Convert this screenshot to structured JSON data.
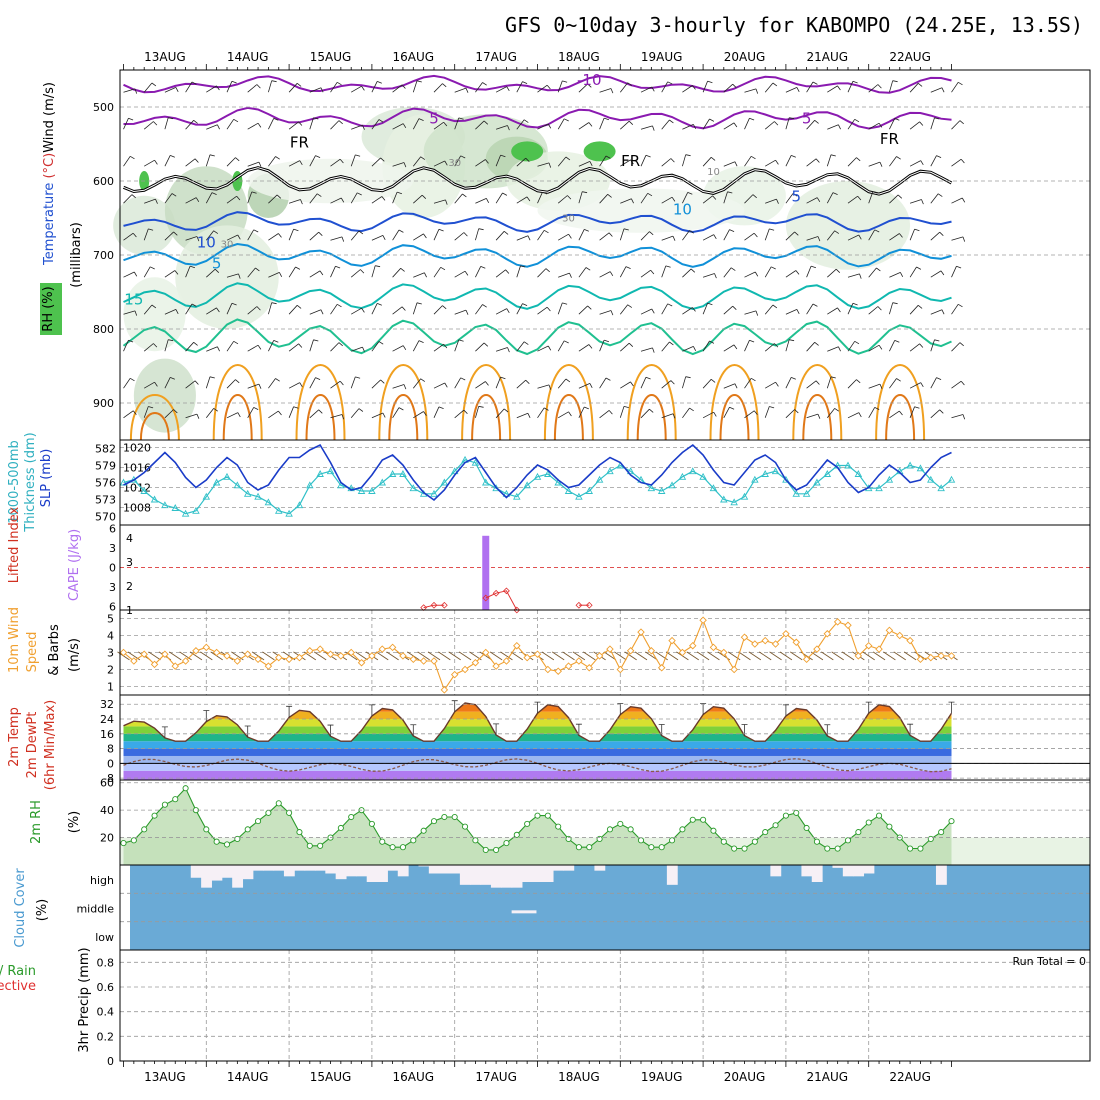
{
  "title": "GFS 0~10day 3-hourly for KABOMPO (24.25E, 13.5S)",
  "chart_data": {
    "type": "meteogram",
    "time_axis": {
      "days": [
        "13AUG",
        "14AUG",
        "15AUG",
        "16AUG",
        "17AUG",
        "18AUG",
        "19AUG",
        "20AUG",
        "21AUG",
        "22AUG"
      ],
      "steps": 81,
      "step_hours": 3
    },
    "panels": {
      "upper_air": {
        "type": "contour",
        "ylabel_parts": [
          "RH (%)",
          "Temperature (°C)",
          "Wind (m/s)"
        ],
        "axis_label": "(millibars)",
        "pressure_levels": [
          500,
          600,
          700,
          800,
          900
        ],
        "ylim": [
          450,
          950
        ],
        "contour_labels": [
          "-10",
          "5",
          "5",
          "FR",
          "FR",
          "FR",
          "10",
          "10",
          "5",
          "5",
          "15",
          "30",
          "30",
          "30",
          "10"
        ]
      },
      "thickness_slp": {
        "type": "line",
        "ylabel_left": "1000-500mb Thickness (dm)",
        "ylabel_right": "SLP (mb)",
        "left_ticks": [
          570,
          573,
          576,
          579,
          582
        ],
        "right_ticks": [
          1008,
          1012,
          1016,
          1020
        ],
        "left_lim": [
          568.5,
          583.5
        ],
        "right_lim": [
          1004.5,
          1021.5
        ],
        "slp": [
          1012.5,
          1013.5,
          1015,
          1017,
          1019,
          1017,
          1014,
          1012,
          1013.5,
          1016,
          1018,
          1016.5,
          1013,
          1011.5,
          1012.5,
          1015.5,
          1018,
          1018,
          1019.5,
          1020.5,
          1017,
          1013,
          1011.5,
          1012,
          1014.5,
          1017.5,
          1018.5,
          1016.5,
          1013.5,
          1011,
          1009.5,
          1011.5,
          1014.5,
          1017,
          1018,
          1015,
          1012,
          1010,
          1012,
          1014.5,
          1016.5,
          1015.5,
          1013.5,
          1012,
          1012.5,
          1014.5,
          1016.5,
          1018,
          1017,
          1014.5,
          1013,
          1012.5,
          1014.5,
          1017,
          1019,
          1020.5,
          1018.5,
          1015.5,
          1013,
          1012.5,
          1015,
          1017.5,
          1018.5,
          1017,
          1013.5,
          1011.5,
          1012.5,
          1015,
          1017.5,
          1016,
          1013,
          1011,
          1012,
          1014.5,
          1016.5,
          1015,
          1013,
          1013.5,
          1016,
          1018,
          1019
        ],
        "thickness": [
          576,
          576.5,
          574.5,
          573,
          572,
          571.5,
          570.5,
          571,
          573.5,
          576,
          577,
          575.5,
          574,
          573.5,
          572.5,
          571,
          570.5,
          572,
          575.5,
          577.5,
          578,
          575.5,
          575,
          574.5,
          574.5,
          576,
          577.5,
          577.5,
          575,
          574,
          574,
          576,
          578,
          580,
          579.5,
          576,
          575,
          574,
          573.5,
          575.5,
          577,
          577.5,
          576,
          574.5,
          573.5,
          574.5,
          576.5,
          578,
          579,
          578,
          576.5,
          575,
          574.5,
          575.5,
          577,
          578,
          577,
          575,
          573,
          572.5,
          573.5,
          576.5,
          577.5,
          578,
          576.5,
          574,
          574,
          576,
          577.5,
          579,
          579,
          577.5,
          575,
          575,
          576.5,
          578,
          579,
          578.5,
          576.5,
          575,
          576.5
        ]
      },
      "lifted_cape": {
        "type": "bar+line",
        "ylabel_left": "Lifted Index",
        "ylabel_right": "CAPE (J/kg)",
        "left_ticks": [
          -6,
          -3,
          0,
          3,
          6
        ],
        "left_tick_labels": [
          "6",
          "3",
          "0",
          "3",
          "6"
        ],
        "right_ticks": [
          1,
          2,
          3,
          4
        ],
        "cape_bar": {
          "step": 35,
          "value": 4.1
        },
        "lifted_segments": [
          [
            [
              29,
              1.1
            ],
            [
              30,
              1.2
            ],
            [
              31,
              1.2
            ]
          ],
          [
            [
              35,
              1.5
            ],
            [
              36,
              1.7
            ],
            [
              37,
              1.8
            ],
            [
              38,
              1.0
            ]
          ],
          [
            [
              44,
              1.2
            ],
            [
              45,
              1.2
            ]
          ]
        ]
      },
      "wind10m": {
        "type": "line",
        "ylabel": "10m Wind Speed & Barbs (m/s)",
        "ticks": [
          1,
          2,
          3,
          4,
          5
        ],
        "ylim": [
          0.5,
          5.5
        ],
        "speed": [
          3.0,
          2.5,
          2.9,
          2.3,
          2.9,
          2.2,
          2.5,
          3.1,
          3.3,
          3.0,
          2.8,
          2.5,
          2.9,
          2.6,
          2.2,
          2.7,
          2.6,
          2.7,
          3.1,
          3.2,
          2.9,
          2.8,
          3.0,
          2.4,
          2.8,
          3.2,
          3.3,
          2.8,
          2.6,
          2.5,
          2.5,
          0.8,
          1.7,
          2.0,
          2.4,
          3.0,
          2.2,
          2.5,
          3.4,
          2.7,
          2.9,
          2.0,
          1.9,
          2.2,
          2.5,
          2.1,
          2.8,
          3.2,
          2.0,
          3.1,
          4.2,
          3.1,
          2.1,
          3.7,
          3.0,
          3.4,
          4.9,
          3.3,
          3.0,
          2.0,
          3.9,
          3.5,
          3.7,
          3.5,
          4.1,
          3.6,
          2.6,
          3.2,
          4.1,
          4.8,
          4.6,
          2.8,
          3.4,
          3.2,
          4.3,
          4.0,
          3.7,
          2.6,
          2.7,
          2.8,
          2.8
        ]
      },
      "temp2m": {
        "type": "area+line",
        "ylabel_parts": [
          "2m Temp",
          "2m DewPt",
          "(6hr Min/Max)"
        ],
        "ticks": [
          -8,
          0,
          8,
          16,
          24,
          32
        ],
        "ylim": [
          -9,
          37
        ],
        "diurnal_min": 12,
        "diurnal_max": [
          23,
          26,
          29,
          30,
          33,
          32,
          31,
          31,
          30,
          32
        ],
        "color_bands": [
          {
            "from": -9,
            "to": -4,
            "color": "#b07af0"
          },
          {
            "from": -4,
            "to": 0,
            "color": "#b6c8ff"
          },
          {
            "from": 0,
            "to": 4,
            "color": "#9db8f0"
          },
          {
            "from": 4,
            "to": 8,
            "color": "#3a6be0"
          },
          {
            "from": 8,
            "to": 12,
            "color": "#3aa9e8"
          },
          {
            "from": 12,
            "to": 16,
            "color": "#1fb58a"
          },
          {
            "from": 16,
            "to": 20,
            "color": "#7fd13a"
          },
          {
            "from": 20,
            "to": 24,
            "color": "#d8e030"
          },
          {
            "from": 24,
            "to": 28,
            "color": "#f0b020"
          },
          {
            "from": 28,
            "to": 32,
            "color": "#f07818"
          },
          {
            "from": 32,
            "to": 37,
            "color": "#e04010"
          }
        ]
      },
      "rh2m": {
        "type": "area",
        "ylabel": "2m RH (%)",
        "ticks": [
          20,
          40,
          60
        ],
        "ylim": [
          0,
          62
        ],
        "values": [
          16,
          18,
          26,
          36,
          44,
          48,
          56,
          40,
          26,
          17,
          15,
          19,
          26,
          32,
          38,
          45,
          38,
          24,
          14,
          14,
          20,
          27,
          35,
          40,
          30,
          17,
          13,
          13,
          18,
          25,
          32,
          35,
          35,
          28,
          18,
          11,
          11,
          16,
          22,
          30,
          36,
          36,
          28,
          19,
          13,
          13,
          19,
          26,
          30,
          26,
          18,
          13,
          13,
          18,
          26,
          33,
          33,
          25,
          17,
          12,
          12,
          17,
          24,
          29,
          36,
          38,
          27,
          17,
          12,
          12,
          18,
          24,
          31,
          36,
          28,
          20,
          12,
          12,
          19,
          24,
          32
        ]
      },
      "cloud": {
        "type": "stacked",
        "ylabel": "Cloud Cover (%)",
        "levels": [
          "high",
          "middle",
          "low"
        ],
        "high": [
          100,
          100,
          100,
          100,
          100,
          100,
          100,
          100,
          100,
          100,
          100,
          100,
          100,
          100,
          100,
          100,
          100,
          100,
          100,
          100,
          100,
          100,
          100,
          100,
          100,
          100,
          100,
          100,
          100,
          100,
          100,
          100,
          100,
          100,
          100,
          100,
          100,
          100,
          100,
          100,
          100,
          100,
          100,
          100,
          100,
          100,
          100,
          100,
          100,
          100,
          100,
          100,
          100,
          100,
          100,
          100,
          100,
          100,
          100,
          100,
          100,
          100,
          100,
          100,
          100,
          100,
          100,
          100,
          100,
          100,
          100,
          100,
          100,
          100,
          100,
          100,
          100,
          100,
          100,
          100,
          100
        ],
        "high_gaps": [
          0,
          0,
          0,
          0,
          0,
          0,
          0,
          45,
          80,
          55,
          45,
          80,
          50,
          20,
          20,
          20,
          40,
          20,
          20,
          20,
          30,
          50,
          40,
          40,
          60,
          60,
          20,
          40,
          0,
          5,
          30,
          30,
          30,
          70,
          70,
          70,
          80,
          80,
          80,
          60,
          60,
          60,
          20,
          20,
          0,
          0,
          20,
          0,
          0,
          0,
          0,
          0,
          0,
          70,
          0,
          0,
          0,
          0,
          0,
          0,
          0,
          0,
          0,
          40,
          0,
          0,
          40,
          60,
          0,
          10,
          40,
          40,
          30,
          0,
          0,
          0,
          0,
          0,
          0,
          70,
          0
        ],
        "middle_gaps": []
      },
      "precip": {
        "type": "bar",
        "ylabel_parts": [
          "Total / Rain",
          "Convective",
          "3hr Precip (mm)"
        ],
        "ticks": [
          0,
          0.2,
          0.4,
          0.6,
          0.8
        ],
        "ylim": [
          0,
          0.9
        ],
        "run_total_label": "Run Total = 0",
        "values": []
      }
    }
  }
}
